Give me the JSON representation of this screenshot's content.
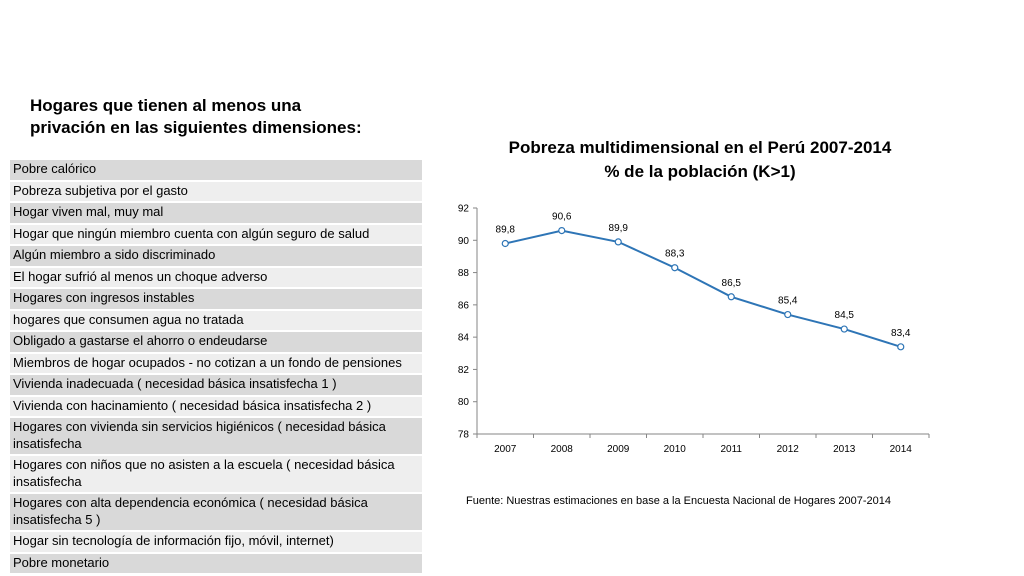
{
  "heading_line1": "Hogares que tienen al menos una",
  "heading_line2": "privación en las siguientes dimensiones:",
  "dimensions": [
    "Pobre calórico",
    "Pobreza subjetiva por el gasto",
    "Hogar viven mal, muy mal",
    "Hogar que ningún miembro cuenta con algún seguro de salud",
    "Algún miembro a sido discriminado",
    "El hogar sufrió al menos un choque adverso",
    "Hogares con ingresos instables",
    "hogares que consumen agua no tratada",
    "Obligado a gastarse el ahorro o endeudarse",
    "Miembros de hogar ocupados - no cotizan a un fondo de pensiones",
    "Vivienda inadecuada ( necesidad básica insatisfecha 1 )",
    "Vivienda con hacinamiento ( necesidad básica insatisfecha 2 )",
    "Hogares con vivienda sin servicios higiénicos ( necesidad básica insatisfecha",
    "Hogares con niños que no asisten a la escuela ( necesidad básica insatisfecha",
    "Hogares con alta dependencia económica ( necesidad básica insatisfecha 5 )",
    "Hogar sin tecnología de información fijo, móvil, internet)",
    "Pobre monetario"
  ],
  "source": "Fuente: Nuestras estimaciones en base a la Encuesta Nacional de Hogares 2007-2014",
  "chart_data": {
    "type": "line",
    "title_line1": "Pobreza multidimensional en el Perú 2007-2014",
    "title_line2": "% de la población (K>1)",
    "categories": [
      "2007",
      "2008",
      "2009",
      "2010",
      "2011",
      "2012",
      "2013",
      "2014"
    ],
    "values": [
      89.8,
      90.6,
      89.9,
      88.3,
      86.5,
      85.4,
      84.5,
      83.4
    ],
    "value_labels": [
      "89,8",
      "90,6",
      "89,9",
      "88,3",
      "86,5",
      "85,4",
      "84,5",
      "83,4"
    ],
    "y_ticks": [
      "78",
      "80",
      "82",
      "84",
      "86",
      "88",
      "90",
      "92"
    ],
    "ylim": [
      78,
      92
    ],
    "line_color": "#2e75b6",
    "grid": false
  }
}
